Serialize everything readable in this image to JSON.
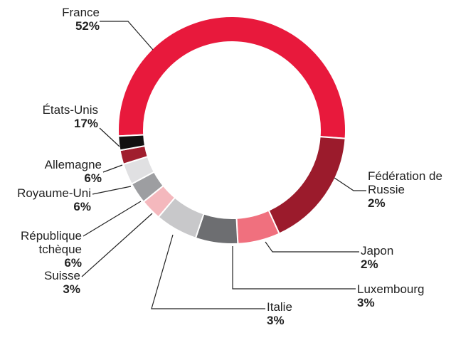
{
  "chart_data": {
    "type": "donut",
    "categories": [
      "France",
      "États-Unis",
      "Allemagne",
      "Royaume-Uni",
      "République tchèque",
      "Suisse",
      "Italie",
      "Luxembourg",
      "Japon",
      "Fédération de Russie"
    ],
    "values": [
      52,
      17,
      6,
      6,
      6,
      3,
      3,
      3,
      2,
      2
    ],
    "value_labels": [
      "52%",
      "17%",
      "6%",
      "6%",
      "6%",
      "3%",
      "3%",
      "3%",
      "2%",
      "2%"
    ],
    "colors": [
      "#e8193c",
      "#9b1b2c",
      "#f0707e",
      "#6d6e71",
      "#c8c8ca",
      "#f4b8bd",
      "#9d9ea1",
      "#e0e0e2",
      "#a01e2e",
      "#111111"
    ]
  }
}
